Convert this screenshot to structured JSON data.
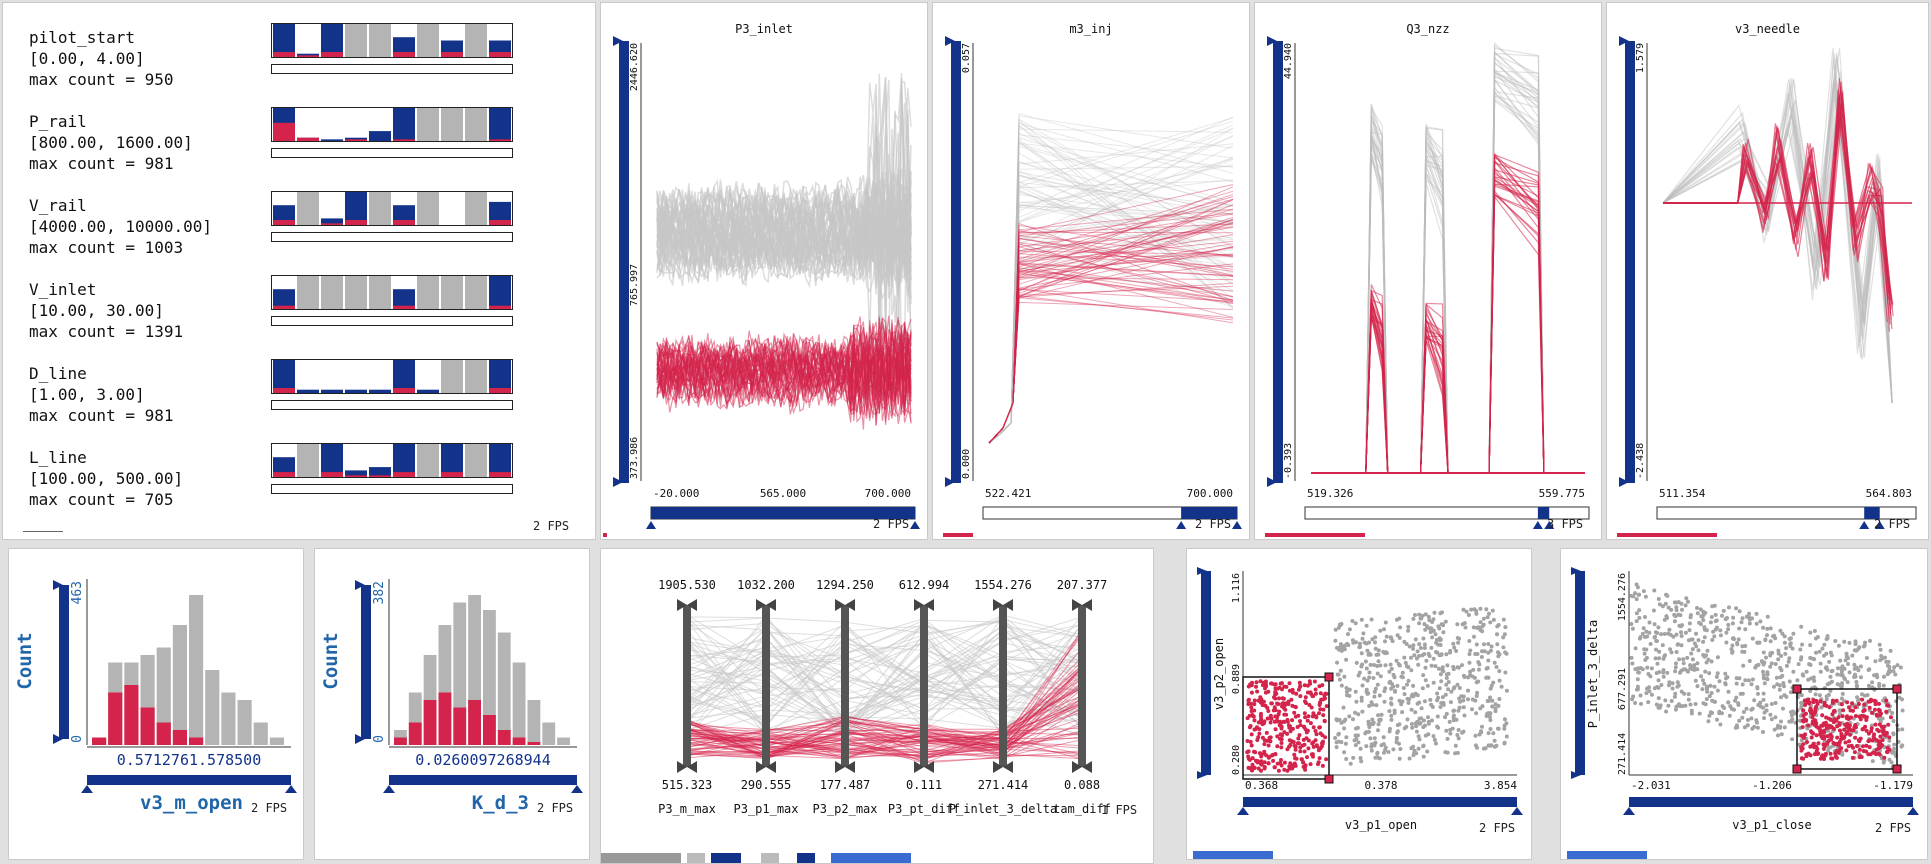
{
  "colors": {
    "blue": "#13338a",
    "red": "#d4244b",
    "gray": "#b4b4b4",
    "lightgray": "#cfcfcf",
    "count_label": "#2266aa"
  },
  "hist_panel": {
    "fps": "2 FPS",
    "rows": [
      {
        "name": "pilot_start",
        "range": "[0.00, 4.00]",
        "max": "max count = 950",
        "bars": [
          "b",
          "b",
          "b",
          "g",
          "g",
          "b",
          "g",
          "b",
          "g",
          "b"
        ],
        "heights": [
          1,
          0.1,
          1,
          1,
          1,
          0.6,
          1,
          0.5,
          1,
          0.5
        ],
        "red": [
          0.15,
          0.05,
          0.15,
          0,
          0,
          0.15,
          0,
          0.15,
          0,
          0.15
        ]
      },
      {
        "name": "P_rail",
        "range": "[800.00, 1600.00]",
        "max": "max count = 981",
        "bars": [
          "b",
          "b",
          "b",
          "b",
          "b",
          "b",
          "g",
          "g",
          "g",
          "b"
        ],
        "heights": [
          1,
          0.1,
          0.05,
          0.1,
          0.3,
          1,
          1,
          1,
          1,
          1
        ],
        "red": [
          0.55,
          0.1,
          0,
          0.05,
          0,
          0.05,
          0,
          0,
          0,
          0.05
        ]
      },
      {
        "name": "V_rail",
        "range": "[4000.00, 10000.00]",
        "max": "max count = 1003",
        "bars": [
          "b",
          "g",
          "b",
          "b",
          "g",
          "b",
          "g",
          "b",
          "g",
          "b"
        ],
        "heights": [
          0.6,
          1,
          0.2,
          1,
          1,
          0.6,
          1,
          0,
          1,
          0.7
        ],
        "red": [
          0.15,
          0,
          0.05,
          0.15,
          0,
          0.15,
          0,
          0,
          0,
          0.15
        ]
      },
      {
        "name": "V_inlet",
        "range": "[10.00, 30.00]",
        "max": "max count = 1391",
        "bars": [
          "b",
          "g",
          "g",
          "g",
          "g",
          "b",
          "g",
          "g",
          "g",
          "b"
        ],
        "heights": [
          0.6,
          1,
          1,
          1,
          1,
          0.6,
          1,
          1,
          1,
          1
        ],
        "red": [
          0.1,
          0,
          0,
          0,
          0,
          0.1,
          0,
          0,
          0,
          0.1
        ]
      },
      {
        "name": "D_line",
        "range": "[1.00, 3.00]",
        "max": "max count = 981",
        "bars": [
          "b",
          "b",
          "b",
          "b",
          "b",
          "b",
          "b",
          "g",
          "g",
          "b"
        ],
        "heights": [
          1,
          0.1,
          0.1,
          0.1,
          0.1,
          1,
          0.1,
          1,
          1,
          1
        ],
        "red": [
          0.15,
          0,
          0,
          0,
          0,
          0.15,
          0,
          0,
          0,
          0.15
        ]
      },
      {
        "name": "L_line",
        "range": "[100.00, 500.00]",
        "max": "max count = 705",
        "bars": [
          "b",
          "g",
          "b",
          "b",
          "b",
          "b",
          "g",
          "b",
          "g",
          "b"
        ],
        "heights": [
          0.6,
          1,
          1,
          0.2,
          0.3,
          1,
          1,
          1,
          1,
          1
        ],
        "red": [
          0.15,
          0,
          0.15,
          0.05,
          0.05,
          0.15,
          0,
          0.15,
          0,
          0.15
        ]
      }
    ]
  },
  "line_panels": [
    {
      "title": "P3_inlet",
      "y_top": "2446.620",
      "y_mid": "765.997",
      "y_bot": "373.986",
      "x_left": "-20.000",
      "x_mid": "565.000",
      "x_right": "700.000",
      "fps": "2 FPS"
    },
    {
      "title": "m3_inj",
      "y_top": "0.057",
      "y_bot": "0.000",
      "x_left": "522.421",
      "x_right": "700.000",
      "fps": "2 FPS"
    },
    {
      "title": "Q3_nzz",
      "y_top": "44.940",
      "y_bot": "-0.393",
      "x_left": "519.326",
      "x_right": "559.775",
      "fps": "3 FPS"
    },
    {
      "title": "v3_needle",
      "y_top": "1.579",
      "y_bot": "-2.438",
      "x_left": "511.354",
      "x_right": "564.803",
      "fps": "2 FPS"
    }
  ],
  "bar_hists": [
    {
      "axis_label": "Count",
      "y_max": "463",
      "y_min": "0",
      "range_text": "0.5712761.578500",
      "variable": "v3_m_open",
      "fps": "2 FPS",
      "gray": [
        0.05,
        0.55,
        0.55,
        0.6,
        0.65,
        0.8,
        1.0,
        0.5,
        0.35,
        0.3,
        0.15,
        0.05
      ],
      "red": [
        0.05,
        0.35,
        0.4,
        0.25,
        0.15,
        0.1,
        0.05,
        0,
        0,
        0,
        0,
        0
      ]
    },
    {
      "axis_label": "Count",
      "y_max": "382",
      "y_min": "0",
      "range_text": "0.0260097268944",
      "variable": "K_d_3",
      "fps": "2 FPS",
      "gray": [
        0.1,
        0.35,
        0.6,
        0.8,
        0.95,
        1.0,
        0.9,
        0.75,
        0.55,
        0.3,
        0.15,
        0.05
      ],
      "red": [
        0.05,
        0.15,
        0.3,
        0.35,
        0.25,
        0.3,
        0.2,
        0.1,
        0.05,
        0.02,
        0,
        0
      ]
    }
  ],
  "parcoords": {
    "fps": "1 FPS",
    "axes": [
      {
        "top": "1905.530",
        "bottom": "515.323",
        "label": "P3_m_max"
      },
      {
        "top": "1032.200",
        "bottom": "290.555",
        "label": "P3_p1_max"
      },
      {
        "top": "1294.250",
        "bottom": "177.487",
        "label": "P3_p2_max"
      },
      {
        "top": "612.994",
        "bottom": "0.111",
        "label": "P3_pt_diff"
      },
      {
        "top": "1554.276",
        "bottom": "271.414",
        "label": "P_inlet_3_delta"
      },
      {
        "top": "207.377",
        "bottom": "0.088",
        "label": "tam_diff"
      }
    ]
  },
  "scatters": [
    {
      "y_label": "v3_p2_open",
      "y_top": "1.116",
      "y_mid": "0.889",
      "y_bot": "0.280",
      "x_left": "0.368",
      "x_mid": "0.378",
      "x_right": "3.854",
      "x_label": "v3_p1_open",
      "fps": "2 FPS"
    },
    {
      "y_label": "P_inlet_3_delta",
      "y_top": "1554.276",
      "y_mid": "677.291",
      "y_bot": "271.414",
      "x_left": "-2.031",
      "x_mid": "-1.206",
      "x_right": "-1.179",
      "x_label": "v3_p1_close",
      "fps": "2 FPS"
    }
  ]
}
